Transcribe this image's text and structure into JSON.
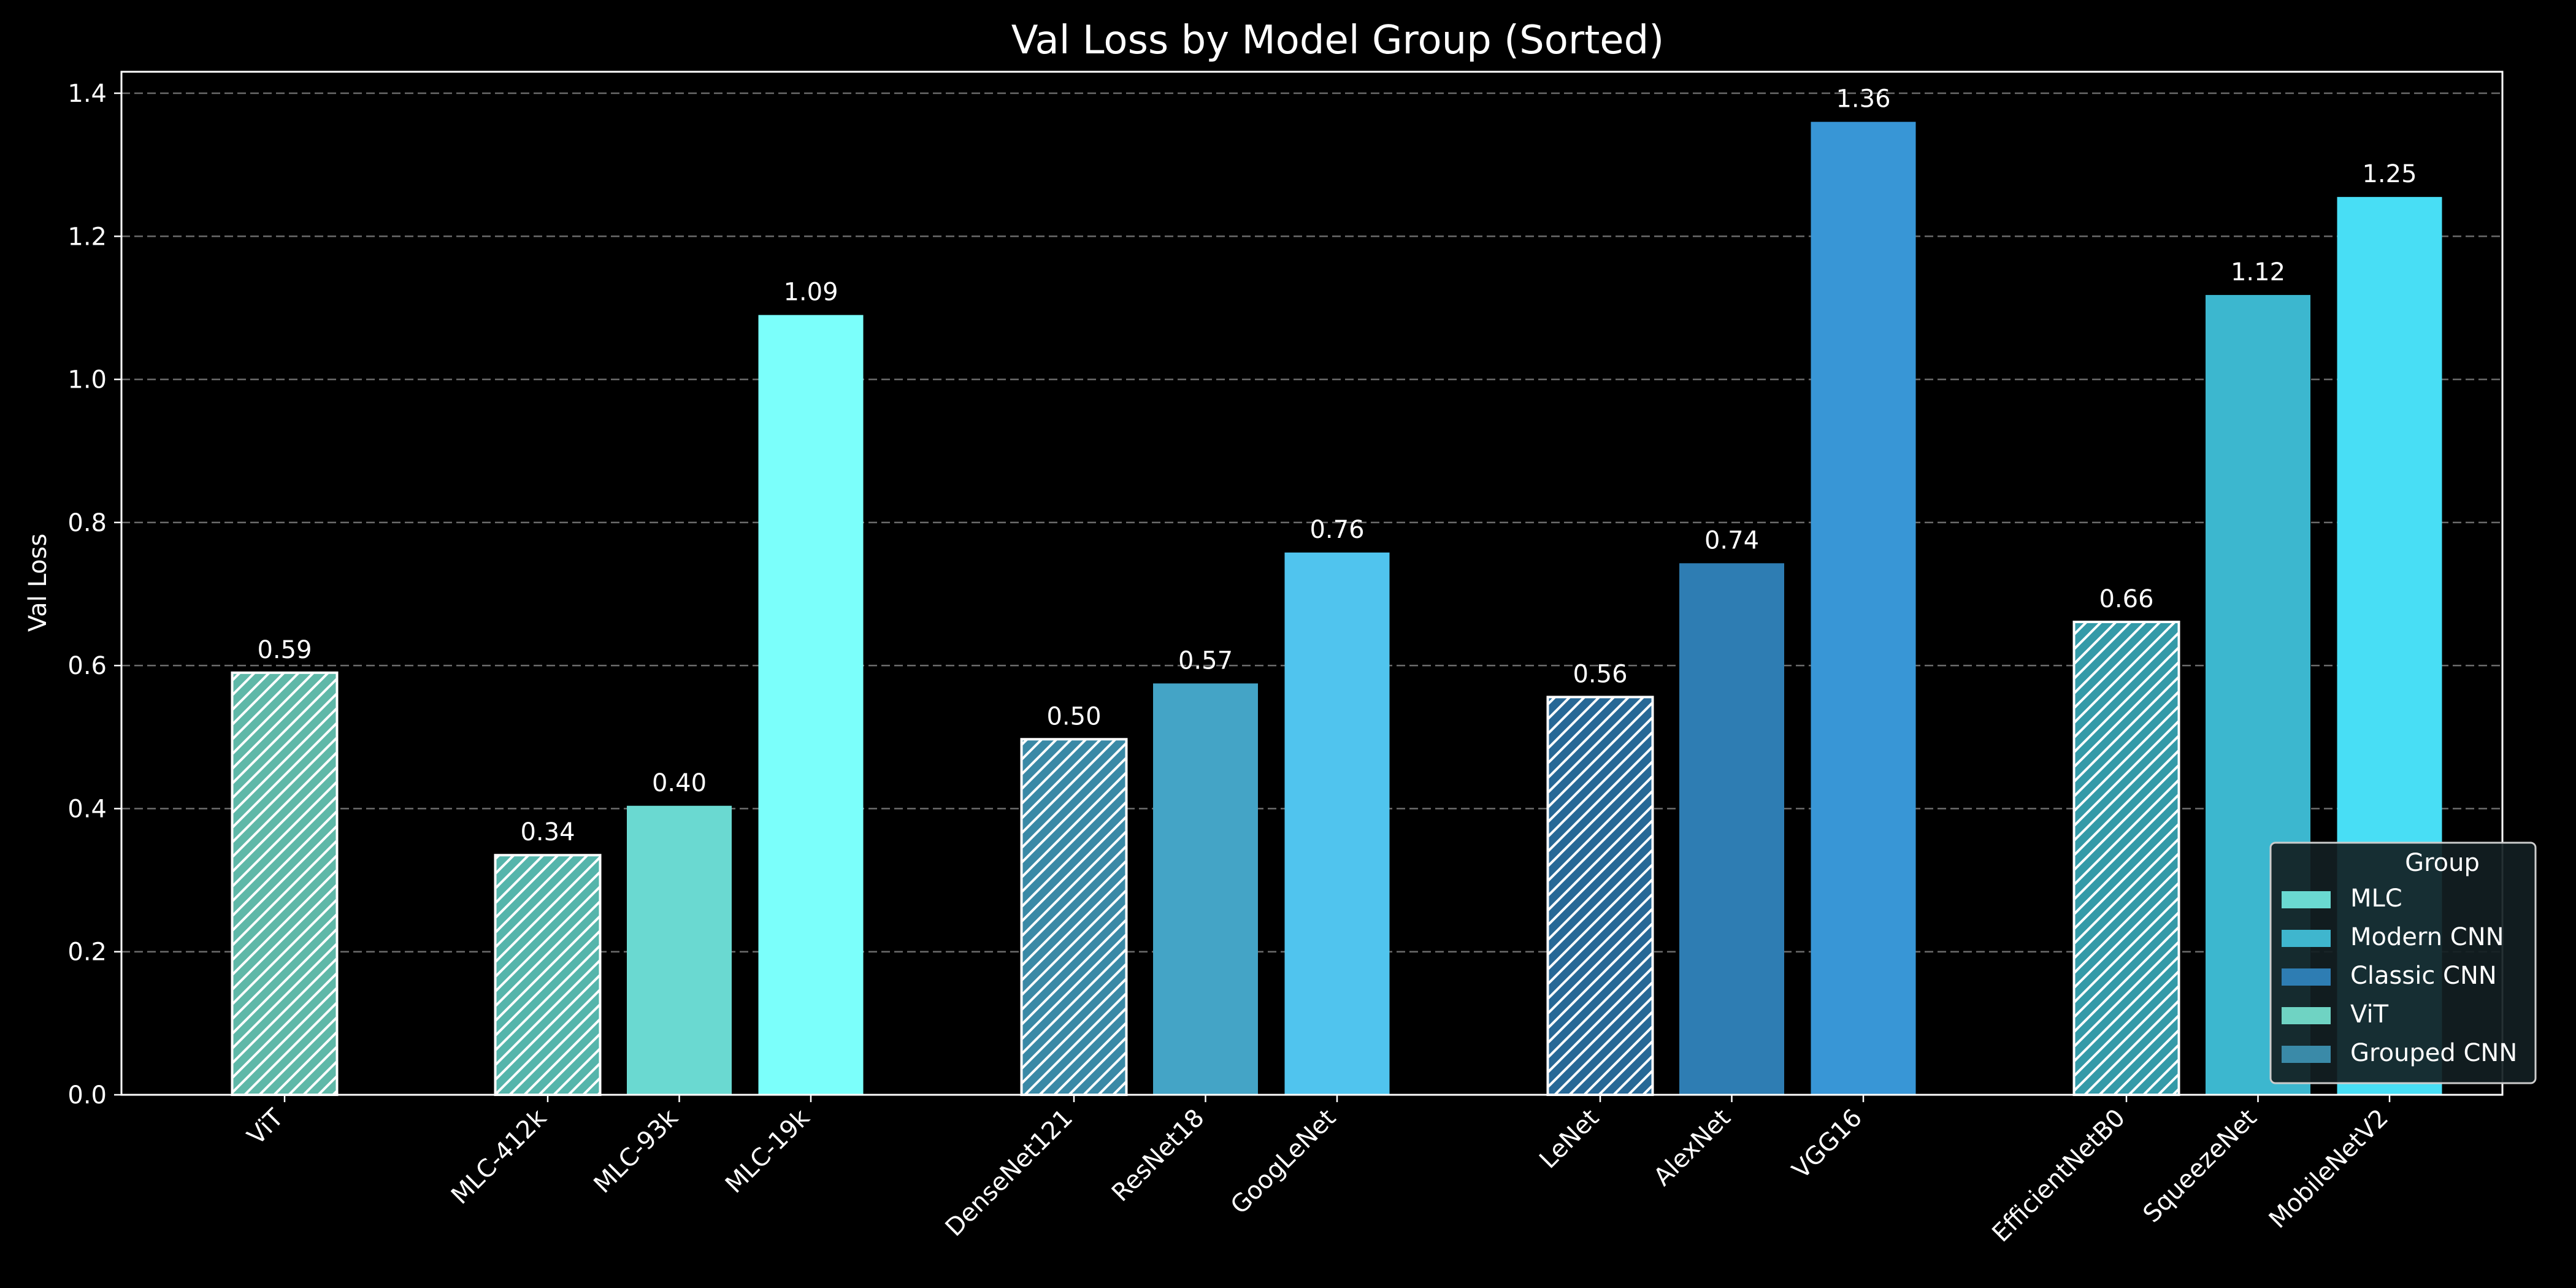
{
  "chart_data": {
    "type": "bar",
    "title": "Val Loss by Model Group (Sorted)",
    "xlabel": "",
    "ylabel": "Val Loss",
    "ylim": [
      0,
      1.43
    ],
    "yticks": [
      "0.0",
      "0.2",
      "0.4",
      "0.6",
      "0.8",
      "1.0",
      "1.2",
      "1.4"
    ],
    "ytick_values": [
      0,
      0.2,
      0.4,
      0.6,
      0.8,
      1.0,
      1.2,
      1.4
    ],
    "grid": "horizontal dashed",
    "legend": {
      "title": "Group",
      "placement": "lower-right",
      "entries": [
        {
          "name": "MLC",
          "color": "#6ad9d1"
        },
        {
          "name": "Modern CNN",
          "color": "#3fb6ce"
        },
        {
          "name": "Classic CNN",
          "color": "#2e7db3"
        },
        {
          "name": "ViT",
          "color": "#6fd3c3"
        },
        {
          "name": "Grouped CNN",
          "color": "#3a8aa8"
        }
      ]
    },
    "groups": [
      {
        "name": "ViT",
        "bars": [
          {
            "label": "ViT",
            "value": 0.59,
            "value_label": "0.59",
            "color": "#5fb8a8",
            "hatched": true
          }
        ]
      },
      {
        "name": "MLC",
        "bars": [
          {
            "label": "MLC-412k",
            "value": 0.335,
            "value_label": "0.34",
            "color": "#55b5ab",
            "hatched": true
          },
          {
            "label": "MLC-93k",
            "value": 0.404,
            "value_label": "0.40",
            "color": "#6ad9d1",
            "hatched": false
          },
          {
            "label": "MLC-19k",
            "value": 1.09,
            "value_label": "1.09",
            "color": "#7bfffb",
            "hatched": false
          }
        ]
      },
      {
        "name": "Modern CNN",
        "bars": [
          {
            "label": "DenseNet121",
            "value": 0.497,
            "value_label": "0.50",
            "color": "#3a89a6",
            "hatched": true
          },
          {
            "label": "ResNet18",
            "value": 0.575,
            "value_label": "0.57",
            "color": "#44a4c6",
            "hatched": false
          },
          {
            "label": "GoogLeNet",
            "value": 0.758,
            "value_label": "0.76",
            "color": "#50c4ee",
            "hatched": false
          }
        ]
      },
      {
        "name": "Classic CNN",
        "bars": [
          {
            "label": "LeNet",
            "value": 0.556,
            "value_label": "0.56",
            "color": "#276896",
            "hatched": true
          },
          {
            "label": "AlexNet",
            "value": 0.743,
            "value_label": "0.74",
            "color": "#2e7db3",
            "hatched": false
          },
          {
            "label": "VGG16",
            "value": 1.36,
            "value_label": "1.36",
            "color": "#3896d6",
            "hatched": false
          }
        ]
      },
      {
        "name": "Grouped CNN",
        "bars": [
          {
            "label": "EfficientNetB0",
            "value": 0.661,
            "value_label": "0.66",
            "color": "#349aa8",
            "hatched": true
          },
          {
            "label": "SqueezeNet",
            "value": 1.118,
            "value_label": "1.12",
            "color": "#3cb7cf",
            "hatched": false
          },
          {
            "label": "MobileNetV2",
            "value": 1.255,
            "value_label": "1.25",
            "color": "#48def5",
            "hatched": false
          }
        ]
      }
    ]
  }
}
